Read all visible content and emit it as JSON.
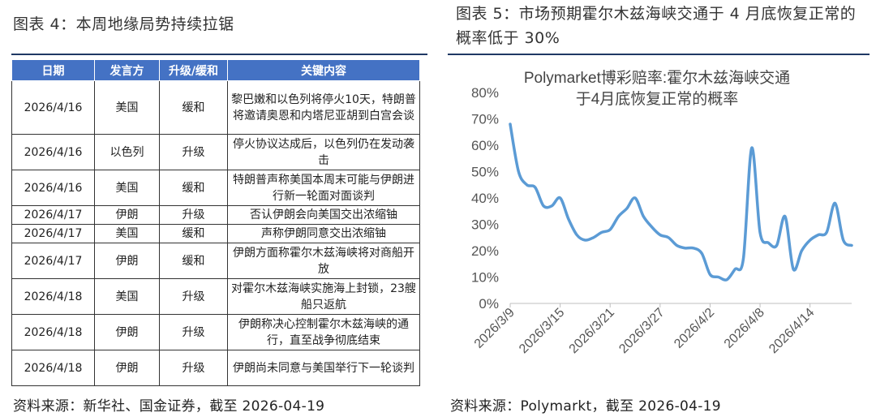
{
  "left_panel": {
    "title": "图表 4：本周地缘局势持续拉锯",
    "source": "资料来源：新华社、国金证券，截至 2026-04-19",
    "table": {
      "headers": [
        "日期",
        "发言方",
        "升级/缓和",
        "关键内容"
      ],
      "rows": [
        {
          "date": "2026/4/16",
          "speaker": "美国",
          "direction": "缓和",
          "content": "黎巴嫩和以色列将停火10天，特朗普将邀请奥恩和内塔尼亚胡到白宫会谈"
        },
        {
          "date": "2026/4/16",
          "speaker": "以色列",
          "direction": "升级",
          "content": "停火协议达成后，以色列仍在发动袭击"
        },
        {
          "date": "2026/4/16",
          "speaker": "美国",
          "direction": "缓和",
          "content": "特朗普声称美国本周末可能与伊朗进行新一轮面对面谈判"
        },
        {
          "date": "2026/4/17",
          "speaker": "伊朗",
          "direction": "升级",
          "content": "否认伊朗会向美国交出浓缩铀"
        },
        {
          "date": "2026/4/17",
          "speaker": "美国",
          "direction": "缓和",
          "content": "声称伊朗同意交出浓缩铀"
        },
        {
          "date": "2026/4/17",
          "speaker": "伊朗",
          "direction": "缓和",
          "content": "伊朗方面称霍尔木兹海峡将对商船开放"
        },
        {
          "date": "2026/4/18",
          "speaker": "美国",
          "direction": "升级",
          "content": "对霍尔木兹海峡实施海上封锁，23艘船只返航"
        },
        {
          "date": "2026/4/18",
          "speaker": "伊朗",
          "direction": "升级",
          "content": "伊朗称决心控制霍尔木兹海峡的通行，直至战争彻底结束"
        },
        {
          "date": "2026/4/18",
          "speaker": "伊朗",
          "direction": "升级",
          "content": "伊朗尚未同意与美国举行下一轮谈判"
        }
      ]
    }
  },
  "right_panel": {
    "title": "图表 5：市场预期霍尔木兹海峡交通于 4 月底恢复正常的概率低于 30%",
    "source": "资料来源：Polymarkt，截至 2026-04-19"
  },
  "colors": {
    "table_header_bg": "#4472c4",
    "line": "#5b9bd5",
    "rule": "#1f3864"
  },
  "chart_data": {
    "type": "line",
    "title": "Polymarket博彩赔率:霍尔木兹海峡交通于4月底恢复正常的概率",
    "xlabel": "",
    "ylabel": "",
    "ylim": [
      0,
      80
    ],
    "y_ticks": [
      "0%",
      "10%",
      "20%",
      "30%",
      "40%",
      "50%",
      "60%",
      "70%",
      "80%"
    ],
    "x_range": [
      "2026/3/9",
      "2026/4/19"
    ],
    "x_ticks": [
      "2026/3/9",
      "2026/3/15",
      "2026/3/21",
      "2026/3/27",
      "2026/4/2",
      "2026/4/8",
      "2026/4/14"
    ],
    "grid": false,
    "legend": "none",
    "series": [
      {
        "x": [
          "2026/3/9",
          "2026/3/10",
          "2026/3/11",
          "2026/3/12",
          "2026/3/13",
          "2026/3/14",
          "2026/3/15",
          "2026/3/16",
          "2026/3/17",
          "2026/3/18",
          "2026/3/19",
          "2026/3/20",
          "2026/3/21",
          "2026/3/22",
          "2026/3/23",
          "2026/3/24",
          "2026/3/25",
          "2026/3/26",
          "2026/3/27",
          "2026/3/28",
          "2026/3/29",
          "2026/3/30",
          "2026/3/31",
          "2026/4/1",
          "2026/4/2",
          "2026/4/3",
          "2026/4/4",
          "2026/4/5",
          "2026/4/6",
          "2026/4/7",
          "2026/4/8",
          "2026/4/9",
          "2026/4/10",
          "2026/4/11",
          "2026/4/12",
          "2026/4/13",
          "2026/4/14",
          "2026/4/15",
          "2026/4/16",
          "2026/4/17",
          "2026/4/18",
          "2026/4/19"
        ],
        "values": [
          68,
          50,
          45,
          44,
          37,
          37,
          40,
          32,
          26,
          24,
          25,
          27,
          28,
          33,
          36,
          40,
          33,
          29,
          26,
          25,
          22,
          21,
          21,
          19,
          11,
          10,
          9,
          13,
          17,
          59,
          27,
          23,
          22,
          33,
          13,
          20,
          24,
          26,
          27,
          38,
          24,
          22
        ]
      }
    ]
  }
}
